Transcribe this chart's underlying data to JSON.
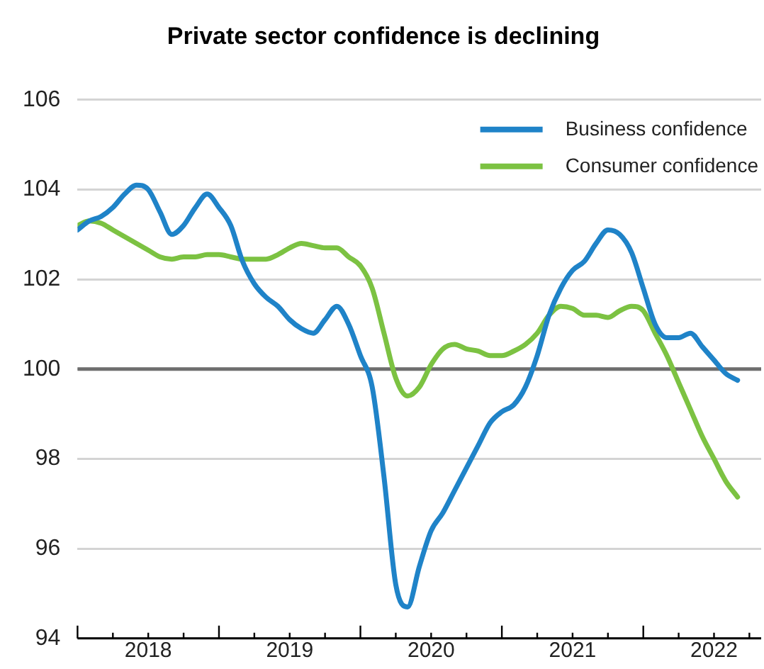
{
  "chart_data": {
    "type": "line",
    "title": "Private sector confidence is declining",
    "x": [
      "2018-01",
      "2018-02",
      "2018-03",
      "2018-04",
      "2018-05",
      "2018-06",
      "2018-07",
      "2018-08",
      "2018-09",
      "2018-10",
      "2018-11",
      "2018-12",
      "2019-01",
      "2019-02",
      "2019-03",
      "2019-04",
      "2019-05",
      "2019-06",
      "2019-07",
      "2019-08",
      "2019-09",
      "2019-10",
      "2019-11",
      "2019-12",
      "2020-01",
      "2020-02",
      "2020-03",
      "2020-04",
      "2020-05",
      "2020-06",
      "2020-07",
      "2020-08",
      "2020-09",
      "2020-10",
      "2020-11",
      "2020-12",
      "2021-01",
      "2021-02",
      "2021-03",
      "2021-04",
      "2021-05",
      "2021-06",
      "2021-07",
      "2021-08",
      "2021-09",
      "2021-10",
      "2021-11",
      "2021-12",
      "2022-01",
      "2022-02",
      "2022-03",
      "2022-04",
      "2022-05",
      "2022-06",
      "2022-07",
      "2022-08",
      "2022-09"
    ],
    "series": [
      {
        "name": "Business confidence",
        "color": "#1f83c8",
        "values": [
          103.1,
          103.3,
          103.4,
          103.6,
          103.9,
          104.1,
          104.0,
          103.5,
          103.0,
          103.2,
          103.6,
          103.9,
          103.6,
          103.2,
          102.4,
          101.9,
          101.6,
          101.4,
          101.1,
          100.9,
          100.8,
          101.1,
          101.4,
          101.0,
          100.3,
          99.6,
          97.6,
          95.2,
          94.7,
          95.6,
          96.4,
          96.8,
          97.3,
          97.8,
          98.3,
          98.8,
          99.05,
          99.2,
          99.6,
          100.3,
          101.2,
          101.8,
          102.2,
          102.4,
          102.8,
          103.1,
          103.0,
          102.6,
          101.8,
          101.0,
          100.7,
          100.7,
          100.8,
          100.5,
          100.2,
          99.9,
          99.75
        ]
      },
      {
        "name": "Consumer confidence",
        "color": "#7cc242",
        "values": [
          103.2,
          103.3,
          103.25,
          103.1,
          102.95,
          102.8,
          102.65,
          102.5,
          102.45,
          102.5,
          102.5,
          102.55,
          102.55,
          102.5,
          102.45,
          102.45,
          102.45,
          102.55,
          102.7,
          102.8,
          102.75,
          102.7,
          102.7,
          102.5,
          102.3,
          101.8,
          100.8,
          99.8,
          99.4,
          99.6,
          100.1,
          100.45,
          100.55,
          100.45,
          100.4,
          100.3,
          100.3,
          100.4,
          100.55,
          100.8,
          101.2,
          101.4,
          101.35,
          101.2,
          101.2,
          101.15,
          101.3,
          101.4,
          101.3,
          100.8,
          100.3,
          99.7,
          99.1,
          98.5,
          98.0,
          97.5,
          97.15
        ]
      }
    ],
    "xlim": [
      "2018-01",
      "2022-11"
    ],
    "xticks": [
      {
        "value": "2018-01",
        "label": null
      },
      {
        "value": "2018-04",
        "label": null
      },
      {
        "value": "2018-07",
        "label": "2018"
      },
      {
        "value": "2018-10",
        "label": null
      },
      {
        "value": "2019-01",
        "label": null
      },
      {
        "value": "2019-04",
        "label": null
      },
      {
        "value": "2019-07",
        "label": "2019"
      },
      {
        "value": "2019-10",
        "label": null
      },
      {
        "value": "2020-01",
        "label": null
      },
      {
        "value": "2020-04",
        "label": null
      },
      {
        "value": "2020-07",
        "label": "2020"
      },
      {
        "value": "2020-10",
        "label": null
      },
      {
        "value": "2021-01",
        "label": null
      },
      {
        "value": "2021-04",
        "label": null
      },
      {
        "value": "2021-07",
        "label": "2021"
      },
      {
        "value": "2021-10",
        "label": null
      },
      {
        "value": "2022-01",
        "label": null
      },
      {
        "value": "2022-04",
        "label": null
      },
      {
        "value": "2022-07",
        "label": "2022"
      },
      {
        "value": "2022-10",
        "label": null
      }
    ],
    "ylim": [
      94,
      106
    ],
    "yticks": [
      94,
      96,
      98,
      100,
      102,
      104,
      106
    ],
    "ref_lines": [
      {
        "axis": "y",
        "value": 100,
        "color": "#6e6e6e"
      }
    ],
    "grid": "y",
    "legend": "top right",
    "marker": "none",
    "line_style": "solid"
  }
}
